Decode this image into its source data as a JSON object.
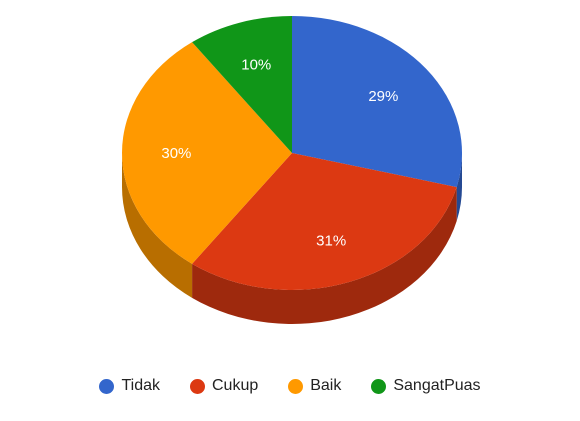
{
  "chart_data": {
    "type": "pie",
    "style": "3d",
    "legend_position": "bottom",
    "slices": [
      {
        "name": "Tidak",
        "value": 29,
        "label": "29%",
        "color": "#3366cc"
      },
      {
        "name": "Cukup",
        "value": 31,
        "label": "31%",
        "color": "#dc3912"
      },
      {
        "name": "Baik",
        "value": 30,
        "label": "30%",
        "color": "#ff9900"
      },
      {
        "name": "SangatPuas",
        "value": 10,
        "label": "10%",
        "color": "#109618"
      }
    ]
  }
}
